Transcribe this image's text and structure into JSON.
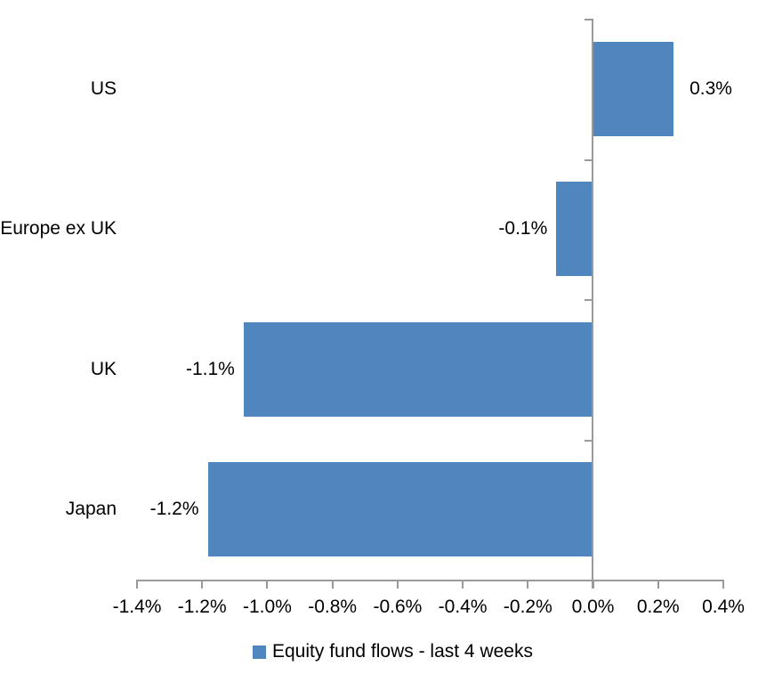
{
  "chart_data": {
    "type": "bar",
    "orientation": "horizontal",
    "title": "",
    "xlabel": "",
    "ylabel": "",
    "categories": [
      "US",
      "Europe ex UK",
      "UK",
      "Japan"
    ],
    "values": [
      0.3,
      -0.1,
      -1.1,
      -1.2
    ],
    "value_labels": [
      "0.3%",
      "-0.1%",
      "-1.1%",
      "-1.2%"
    ],
    "bar_plot_values": [
      0.25,
      -0.11,
      -1.07,
      -1.18
    ],
    "unit": "%",
    "xlim": [
      -1.4,
      0.4
    ],
    "x_tick_step": 0.2,
    "x_tick_labels": [
      "-1.4%",
      "-1.2%",
      "-1.0%",
      "-0.8%",
      "-0.6%",
      "-0.4%",
      "-0.2%",
      "0.0%",
      "0.2%",
      "0.4%"
    ],
    "grid": false,
    "legend": {
      "position": "bottom",
      "entries": [
        {
          "label": "Equity fund flows - last 4 weeks",
          "color": "#4e86bd"
        }
      ]
    },
    "colors": {
      "bar": "#4e86bd",
      "axis": "#9a9a9a",
      "text": "#000000",
      "background": "#ffffff"
    }
  }
}
